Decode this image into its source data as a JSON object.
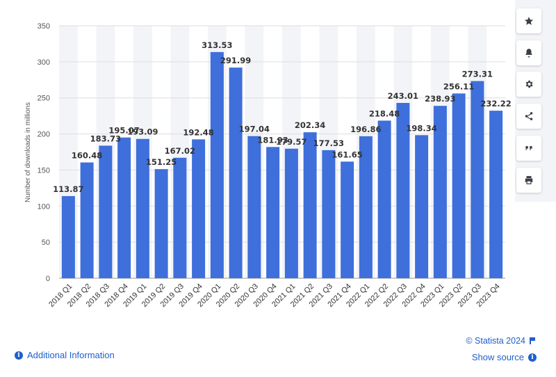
{
  "chart_data": {
    "type": "bar",
    "title": "",
    "xlabel": "",
    "ylabel": "Number of downloads in millions",
    "ylim": [
      0,
      350
    ],
    "yticks": [
      0,
      50,
      100,
      150,
      200,
      250,
      300,
      350
    ],
    "grid": true,
    "bar_color": "#3e6fdb",
    "categories": [
      "2018 Q1",
      "2018 Q2",
      "2018 Q3",
      "2018 Q4",
      "2019 Q1",
      "2019 Q2",
      "2019 Q3",
      "2019 Q4",
      "2020 Q1",
      "2020 Q2",
      "2020 Q3",
      "2020 Q4",
      "2021 Q1",
      "2021 Q2",
      "2021 Q3",
      "2021 Q4",
      "2022 Q1",
      "2022 Q2",
      "2022 Q3",
      "2022 Q4",
      "2023 Q1",
      "2023 Q2",
      "2023 Q3",
      "2023 Q4"
    ],
    "values": [
      113.87,
      160.48,
      183.73,
      195.07,
      193.09,
      151.25,
      167.02,
      192.48,
      313.53,
      291.99,
      197.04,
      181.93,
      179.57,
      202.34,
      177.53,
      161.65,
      196.86,
      218.48,
      243.01,
      198.34,
      238.93,
      256.11,
      273.31,
      232.22
    ],
    "value_labels": [
      "113.87",
      "160.48",
      "183.73",
      "195.07",
      "193.09",
      "151.25",
      "167.02",
      "192.48",
      "313.53",
      "291.99",
      "197.04",
      "181.93",
      "179.57",
      "202.34",
      "177.53",
      "161.65",
      "196.86",
      "218.48",
      "243.01",
      "198.34",
      "238.93",
      "256.11",
      "273.31",
      "232.22"
    ]
  },
  "toolbar": {
    "buttons": [
      {
        "name": "favorite-button",
        "icon": "star-icon"
      },
      {
        "name": "notification-button",
        "icon": "bell-icon"
      },
      {
        "name": "settings-button",
        "icon": "gear-icon"
      },
      {
        "name": "share-button",
        "icon": "share-icon"
      },
      {
        "name": "cite-button",
        "icon": "quote-icon"
      },
      {
        "name": "print-button",
        "icon": "printer-icon"
      }
    ]
  },
  "footer": {
    "additional_info": "Additional Information",
    "copyright": "© Statista 2024",
    "show_source": "Show source",
    "info_glyph": "i"
  },
  "colors": {
    "accent": "#1f5fcc",
    "bar": "#3e6fdb",
    "band": "#f3f4f8",
    "grid": "#dddddd"
  }
}
